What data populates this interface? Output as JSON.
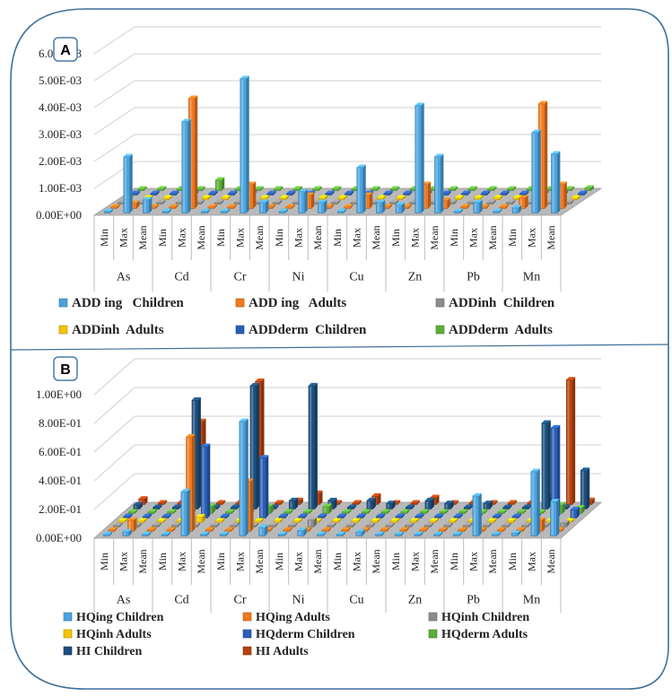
{
  "panel_a_label": "A",
  "panel_b_label": "B",
  "colors": {
    "ADD ing Children": "#4aa3df",
    "ADD ing Adults": "#f0781e",
    "ADDinh Children": "#8c8c8c",
    "ADDinh Adults": "#f5c400",
    "ADDderm Children": "#2a5fb8",
    "ADDderm Adults": "#5cae3a",
    "HQing Children": "#4aa3df",
    "HQing Adults": "#f0781e",
    "HQinh Children": "#8c8c8c",
    "HQinh Adults": "#f5c400",
    "HQderm Children": "#2a5fb8",
    "HQderm Adults": "#5cae3a",
    "HI Children": "#1a4f7e",
    "HI Adults": "#b5420e"
  },
  "chart_data": [
    {
      "type": "bar",
      "panel": "A",
      "groups": [
        "As",
        "Cd",
        "Cr",
        "Ni",
        "Cu",
        "Zn",
        "Pb",
        "Mn"
      ],
      "subcategories": [
        "Min",
        "Max",
        "Mean"
      ],
      "yticks": [
        "0.00E+00",
        "1.00E-03",
        "2.00E-03",
        "3.00E-03",
        "4.00E-03",
        "5.00E-03",
        "6.00E-03"
      ],
      "ylim": [
        0,
        0.006
      ],
      "legend": [
        "ADD ing   Children",
        "ADD ing   Adults",
        "ADDinh  Children",
        "ADDinh  Adults",
        "ADDderm  Children",
        "ADDderm  Adults"
      ],
      "series": [
        {
          "name": "ADD ing Children",
          "values": [
            0,
            0.0021,
            0.0005,
            0,
            0.0034,
            0,
            0,
            0.005,
            0.0004,
            0,
            0.0008,
            0.0004,
            0,
            0.0017,
            0.0004,
            0.0003,
            0.004,
            0.0021,
            0,
            0.0004,
            0,
            0.0002,
            0.003,
            0.0022
          ]
        },
        {
          "name": "ADD ing Adults",
          "values": [
            0,
            0.0002,
            0,
            0,
            0.0041,
            0,
            0,
            0.0009,
            0,
            0,
            0.0005,
            0,
            0,
            0.0005,
            0,
            0,
            0.0009,
            0.0003,
            0,
            0,
            0,
            0.0004,
            0.0039,
            0.0009
          ]
        },
        {
          "name": "ADDinh Children",
          "values": [
            0,
            0,
            0,
            0,
            0,
            0,
            0,
            0,
            0,
            0,
            0,
            0,
            0,
            0,
            0,
            0,
            0,
            0,
            0,
            0,
            0,
            0,
            0,
            0
          ]
        },
        {
          "name": "ADDinh Adults",
          "values": [
            0,
            0,
            0,
            0,
            0,
            0,
            0,
            0,
            0,
            0,
            0,
            0,
            0,
            0,
            0,
            0,
            0,
            0,
            0,
            0,
            0,
            0,
            0,
            0
          ]
        },
        {
          "name": "ADDderm Children",
          "values": [
            0,
            0,
            0,
            0,
            0,
            0,
            0,
            0,
            0,
            0,
            0,
            0,
            0,
            0,
            0,
            0,
            0,
            0,
            0,
            0,
            0,
            0,
            0,
            0
          ]
        },
        {
          "name": "ADDderm Adults",
          "values": [
            0,
            0,
            0,
            0,
            0.0004,
            0,
            0,
            0,
            0,
            0,
            0,
            0,
            0,
            0,
            0,
            0,
            0,
            0,
            0,
            0,
            0,
            0,
            0,
            0.0001
          ]
        }
      ]
    },
    {
      "type": "bar",
      "panel": "B",
      "groups": [
        "As",
        "Cd",
        "Cr",
        "Ni",
        "Cu",
        "Zn",
        "Pb",
        "Mn"
      ],
      "subcategories": [
        "Min",
        "Max",
        "Mean"
      ],
      "yticks": [
        "0.00E+00",
        "2.00E-01",
        "4.00E-01",
        "6.00E-01",
        "8.00E-01",
        "1.00E+00"
      ],
      "ylim": [
        0,
        1.0
      ],
      "legend": [
        "HQing Children",
        "HQing Adults",
        "HQinh Children",
        "HQinh Adults",
        "HQderm Children",
        "HQderm Adults",
        "HI Children",
        "HI Adults"
      ],
      "series": [
        {
          "name": "HQing Children",
          "values": [
            0,
            0.03,
            0,
            0,
            0.31,
            0,
            0,
            0.8,
            0.06,
            0,
            0.04,
            0,
            0,
            0.03,
            0,
            0,
            0,
            0,
            0,
            0.28,
            0,
            0.02,
            0.45,
            0.24
          ]
        },
        {
          "name": "HQing Adults",
          "values": [
            0,
            0.08,
            0,
            0,
            0.66,
            0,
            0,
            0.35,
            0,
            0,
            0,
            0,
            0,
            0,
            0,
            0,
            0,
            0,
            0,
            0,
            0,
            0,
            0.08,
            0
          ]
        },
        {
          "name": "HQinh Children",
          "values": [
            0,
            0,
            0,
            0,
            0,
            0,
            0,
            0,
            0,
            0,
            0.05,
            0,
            0,
            0,
            0,
            0,
            0,
            0,
            0,
            0,
            0,
            0,
            0,
            0.03
          ]
        },
        {
          "name": "HQinh Adults",
          "values": [
            0,
            0,
            0,
            0,
            0.04,
            0,
            0,
            0,
            0,
            0,
            0,
            0,
            0,
            0,
            0,
            0,
            0,
            0,
            0,
            0,
            0,
            0,
            0,
            0
          ]
        },
        {
          "name": "HQderm Children",
          "values": [
            0,
            0,
            0,
            0,
            0.5,
            0,
            0,
            0.42,
            0,
            0,
            0,
            0,
            0,
            0,
            0,
            0,
            0,
            0,
            0,
            0,
            0,
            0,
            0.63,
            0.06
          ]
        },
        {
          "name": "HQderm Adults",
          "values": [
            0,
            0,
            0,
            0,
            0.05,
            0,
            0,
            0.05,
            0,
            0,
            0.05,
            0,
            0,
            0,
            0,
            0,
            0,
            0,
            0,
            0,
            0,
            0,
            0.06,
            0.04
          ]
        },
        {
          "name": "HI Children",
          "values": [
            0.03,
            0,
            0,
            0.76,
            0,
            0,
            0.86,
            0,
            0.06,
            0.86,
            0.06,
            0,
            0.06,
            0.04,
            0,
            0.06,
            0.04,
            0,
            0.04,
            0,
            0,
            0.6,
            0,
            0.27
          ]
        },
        {
          "name": "HI Adults",
          "values": [
            0.04,
            0,
            0,
            0.58,
            0,
            0,
            0.86,
            0,
            0.03,
            0.08,
            0,
            0,
            0.06,
            0,
            0,
            0.05,
            0,
            0,
            0,
            0,
            0,
            0.05,
            0.87,
            0.03
          ]
        }
      ]
    }
  ]
}
